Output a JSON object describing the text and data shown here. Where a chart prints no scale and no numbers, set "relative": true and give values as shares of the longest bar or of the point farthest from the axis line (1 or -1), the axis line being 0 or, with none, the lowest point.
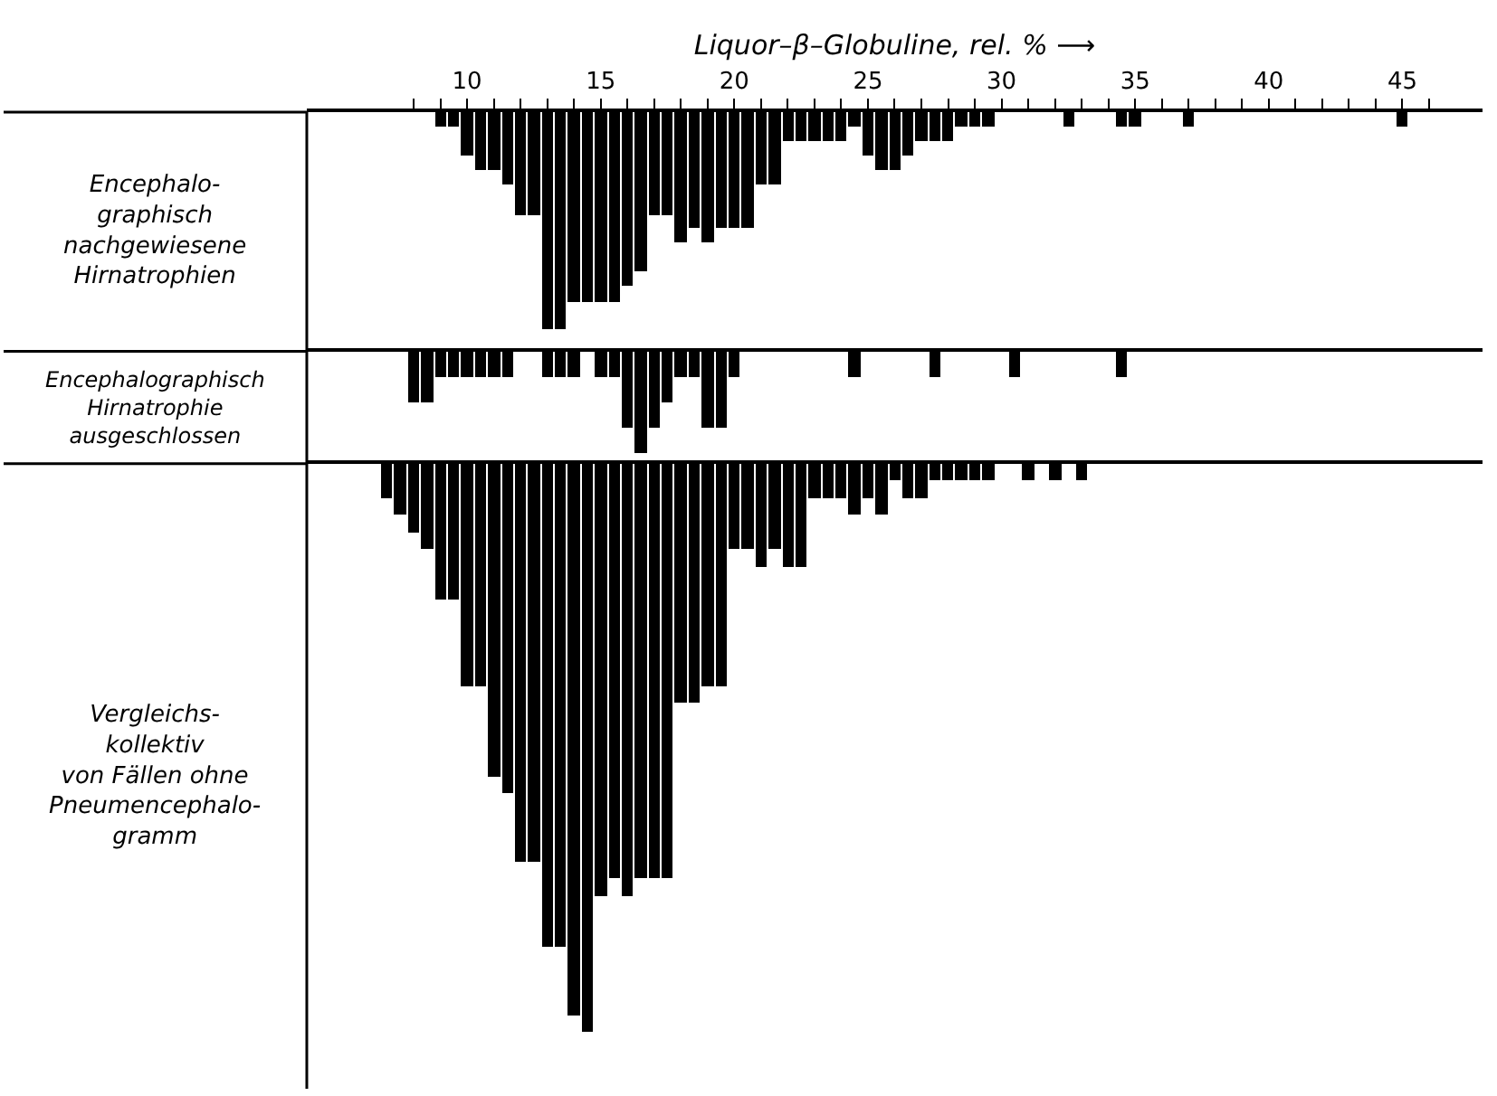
{
  "chart_data": [
    {
      "type": "bar",
      "relative": true,
      "xlabel": "Liquor–β–Globuline, rel. % ⟶",
      "ylabel": "Encephalo-\ngraphisch\nnachgewiesene\nHirnatrophien",
      "color": "#000000",
      "tick_labels": "x",
      "xlim": [
        4,
        48
      ],
      "xticks": [
        {
          "value": 8,
          "label": null
        },
        {
          "value": 9,
          "label": null
        },
        10,
        {
          "value": 11,
          "label": null
        },
        {
          "value": 12,
          "label": null
        },
        {
          "value": 13,
          "label": null
        },
        {
          "value": 14,
          "label": null
        },
        15,
        {
          "value": 16,
          "label": null
        },
        {
          "value": 17,
          "label": null
        },
        {
          "value": 18,
          "label": null
        },
        {
          "value": 19,
          "label": null
        },
        20,
        {
          "value": 21,
          "label": null
        },
        {
          "value": 22,
          "label": null
        },
        {
          "value": 23,
          "label": null
        },
        {
          "value": 24,
          "label": null
        },
        25,
        {
          "value": 26,
          "label": null
        },
        {
          "value": 27,
          "label": null
        },
        {
          "value": 28,
          "label": null
        },
        {
          "value": 29,
          "label": null
        },
        30,
        {
          "value": 31,
          "label": null
        },
        {
          "value": 32,
          "label": null
        },
        {
          "value": 33,
          "label": null
        },
        {
          "value": 34,
          "label": null
        },
        35,
        {
          "value": 36,
          "label": null
        },
        {
          "value": 37,
          "label": null
        },
        {
          "value": 38,
          "label": null
        },
        {
          "value": 39,
          "label": null
        },
        40,
        {
          "value": 41,
          "label": null
        },
        {
          "value": 42,
          "label": null
        },
        {
          "value": 43,
          "label": null
        },
        {
          "value": 44,
          "label": null
        },
        45,
        {
          "value": 46,
          "label": null
        }
      ],
      "x": [
        9,
        9.5,
        10,
        10.5,
        11,
        11.5,
        12,
        12.5,
        13,
        13.5,
        14,
        14.5,
        15,
        15.5,
        16,
        16.5,
        17,
        17.5,
        18,
        18.5,
        19,
        19.5,
        20,
        20.5,
        21,
        21.5,
        22,
        22.5,
        23,
        23.5,
        24,
        24.5,
        25,
        25.5,
        26,
        26.5,
        27,
        27.5,
        28,
        28.5,
        29,
        29.5,
        32.5,
        34.5,
        35,
        37,
        45
      ],
      "values": [
        -0.07,
        -0.07,
        -0.2,
        -0.27,
        -0.27,
        -0.33,
        -0.47,
        -0.47,
        -1,
        -1,
        -0.87,
        -0.87,
        -0.87,
        -0.87,
        -0.8,
        -0.73,
        -0.47,
        -0.47,
        -0.6,
        -0.53,
        -0.6,
        -0.53,
        -0.53,
        -0.53,
        -0.33,
        -0.33,
        -0.13,
        -0.13,
        -0.13,
        -0.13,
        -0.13,
        -0.07,
        -0.2,
        -0.27,
        -0.27,
        -0.2,
        -0.13,
        -0.13,
        -0.13,
        -0.07,
        -0.07,
        -0.07,
        -0.07,
        -0.07,
        -0.07,
        -0.07,
        -0.07
      ]
    },
    {
      "type": "bar",
      "relative": true,
      "ylabel": "Encephalographisch\nHirnatrophie\nausgeschlossen",
      "color": "#000000",
      "tick_labels": false,
      "xlim": [
        4,
        48
      ],
      "x": [
        8,
        8.5,
        9,
        9.5,
        10,
        10.5,
        11,
        11.5,
        13,
        13.5,
        14,
        15,
        15.5,
        16,
        16.5,
        17,
        17.5,
        18,
        18.5,
        19,
        19.5,
        20,
        24.5,
        27.5,
        30.5,
        34.5
      ],
      "values": [
        -0.5,
        -0.5,
        -0.25,
        -0.25,
        -0.25,
        -0.25,
        -0.25,
        -0.25,
        -0.25,
        -0.25,
        -0.25,
        -0.25,
        -0.25,
        -0.75,
        -1,
        -0.75,
        -0.5,
        -0.25,
        -0.25,
        -0.75,
        -0.75,
        -0.25,
        -0.25,
        -0.25,
        -0.25,
        -0.25
      ]
    },
    {
      "type": "bar",
      "relative": true,
      "ylabel": "Vergleichs-\nkollektiv\nvon Fällen ohne\nPneumencephalo-\ngramm",
      "color": "#000000",
      "tick_labels": false,
      "xlim": [
        4,
        48
      ],
      "x": [
        7,
        7.5,
        8,
        8.5,
        9,
        9.5,
        10,
        10.5,
        11,
        11.5,
        12,
        12.5,
        13,
        13.5,
        14,
        14.5,
        15,
        15.5,
        16,
        16.5,
        17,
        17.5,
        18,
        18.5,
        19,
        19.5,
        20,
        20.5,
        21,
        21.5,
        22,
        22.5,
        23,
        23.5,
        24,
        24.5,
        25,
        25.5,
        26,
        26.5,
        27,
        27.5,
        28,
        28.5,
        29,
        29.5,
        31,
        32,
        33
      ],
      "values": [
        -0.06,
        -0.09,
        -0.12,
        -0.15,
        -0.24,
        -0.24,
        -0.39,
        -0.39,
        -0.55,
        -0.58,
        -0.7,
        -0.7,
        -0.85,
        -0.85,
        -0.97,
        -1,
        -0.76,
        -0.73,
        -0.76,
        -0.73,
        -0.73,
        -0.73,
        -0.42,
        -0.42,
        -0.39,
        -0.39,
        -0.15,
        -0.15,
        -0.18,
        -0.15,
        -0.18,
        -0.18,
        -0.06,
        -0.06,
        -0.06,
        -0.09,
        -0.06,
        -0.09,
        -0.03,
        -0.06,
        -0.06,
        -0.03,
        -0.03,
        -0.03,
        -0.03,
        -0.03,
        -0.03,
        -0.03,
        -0.03
      ]
    }
  ]
}
